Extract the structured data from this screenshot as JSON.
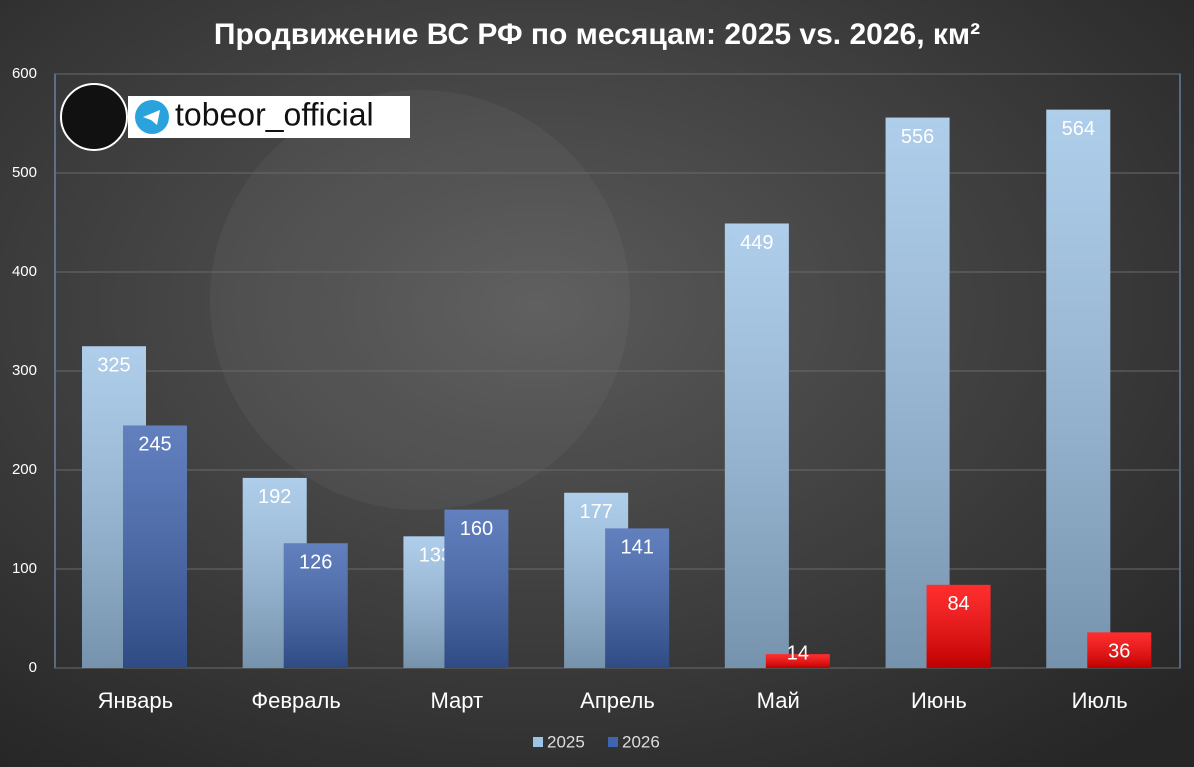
{
  "chart_data": {
    "type": "bar",
    "title": "Продвижение ВС РФ по месяцам: 2025 vs. 2026, км²",
    "watermark": "tobeor_official",
    "categories": [
      "Январь",
      "Февраль",
      "Март",
      "Апрель",
      "Май",
      "Июнь",
      "Июль"
    ],
    "series": [
      {
        "name": "2025",
        "color": "#9dc3e6",
        "values": [
          325,
          192,
          133,
          177,
          449,
          556,
          564
        ]
      },
      {
        "name": "2026",
        "color": "#3f64b0",
        "values": [
          245,
          126,
          160,
          141,
          14,
          84,
          36
        ],
        "colors": [
          "#3f64b0",
          "#3f64b0",
          "#3f64b0",
          "#3f64b0",
          "#ff0000",
          "#ff0000",
          "#ff0000"
        ]
      }
    ],
    "ylim": [
      0,
      600
    ],
    "yticks": [
      0,
      100,
      200,
      300,
      400,
      500,
      600
    ],
    "grid": true,
    "legend": "bottom"
  }
}
